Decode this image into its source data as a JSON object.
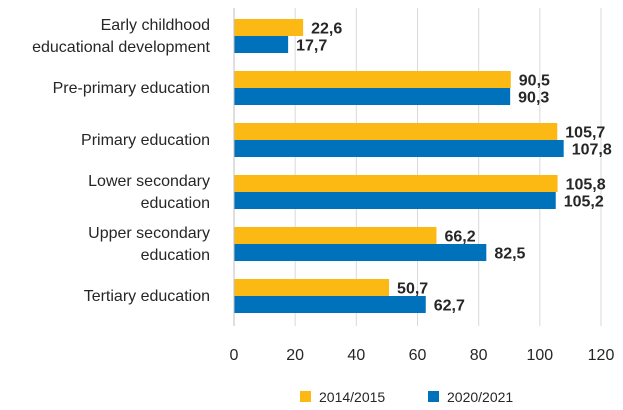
{
  "chart_data": {
    "type": "bar",
    "orientation": "horizontal",
    "categories": [
      [
        "Early childhood",
        "educational development"
      ],
      [
        "Pre-primary education"
      ],
      [
        "Primary education"
      ],
      [
        "Lower secondary",
        "education"
      ],
      [
        "Upper secondary",
        "education"
      ],
      [
        "Tertiary education"
      ]
    ],
    "series": [
      {
        "name": "2014/2015",
        "color": "#FDB913",
        "values": [
          22.6,
          90.5,
          105.7,
          105.8,
          66.2,
          50.7
        ],
        "labels": [
          "22,6",
          "90,5",
          "105,7",
          "105,8",
          "66,2",
          "50,7"
        ]
      },
      {
        "name": "2020/2021",
        "color": "#0072BC",
        "values": [
          17.7,
          90.3,
          107.8,
          105.2,
          82.5,
          62.7
        ],
        "labels": [
          "17,7",
          "90,3",
          "107,8",
          "105,2",
          "82,5",
          "62,7"
        ]
      }
    ],
    "xlim": [
      0,
      120
    ],
    "xticks": [
      0,
      20,
      40,
      60,
      80,
      100,
      120
    ],
    "title": "",
    "xlabel": "",
    "ylabel": "",
    "grid": "vertical",
    "legend": "bottom-center"
  }
}
